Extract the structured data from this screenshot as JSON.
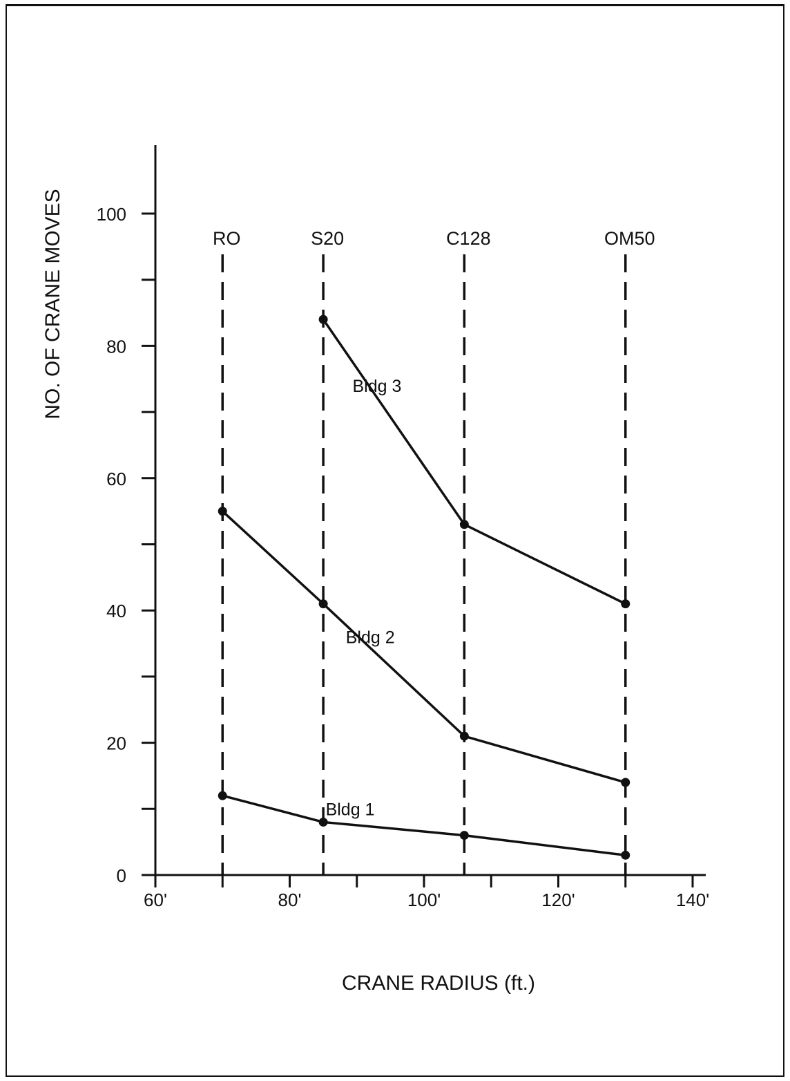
{
  "chart_data": {
    "type": "line",
    "xlabel": "CRANE RADIUS (ft.)",
    "ylabel": "NO. OF CRANE MOVES",
    "xlim": [
      60,
      140
    ],
    "ylim": [
      0,
      110
    ],
    "x_ticks": [
      60,
      70,
      80,
      90,
      100,
      110,
      120,
      130,
      140
    ],
    "x_tick_labels": [
      {
        "value": 60,
        "label": "60'"
      },
      {
        "value": 80,
        "label": "80'"
      },
      {
        "value": 100,
        "label": "100'"
      },
      {
        "value": 120,
        "label": "120'"
      },
      {
        "value": 140,
        "label": "140'"
      }
    ],
    "y_ticks": [
      0,
      10,
      20,
      30,
      40,
      50,
      60,
      70,
      80,
      90,
      100
    ],
    "y_tick_labels": [
      {
        "value": 0,
        "label": "0"
      },
      {
        "value": 20,
        "label": "20"
      },
      {
        "value": 40,
        "label": "40"
      },
      {
        "value": 60,
        "label": "60"
      },
      {
        "value": 80,
        "label": "80"
      },
      {
        "value": 100,
        "label": "100"
      }
    ],
    "cranes": [
      {
        "name": "RO",
        "radius": 70
      },
      {
        "name": "S20",
        "radius": 85
      },
      {
        "name": "C128",
        "radius": 106
      },
      {
        "name": "OM50",
        "radius": 130
      }
    ],
    "series": [
      {
        "name": "Bldg 1",
        "x": [
          70,
          85,
          106,
          130
        ],
        "y": [
          12,
          8,
          6,
          3
        ],
        "label_at": [
          89,
          10
        ]
      },
      {
        "name": "Bldg 2",
        "x": [
          70,
          85,
          106,
          130
        ],
        "y": [
          55,
          41,
          21,
          14
        ],
        "label_at": [
          92,
          36
        ]
      },
      {
        "name": "Bldg 3",
        "x": [
          85,
          106,
          130
        ],
        "y": [
          84,
          53,
          41
        ],
        "label_at": [
          93,
          74
        ]
      }
    ],
    "grid": false,
    "legend": "none"
  }
}
